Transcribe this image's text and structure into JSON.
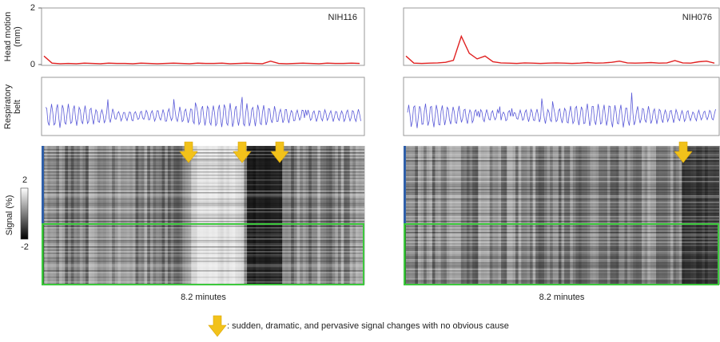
{
  "chart_data": [
    {
      "type": "line",
      "annotation": "NIH116",
      "ylabel": [
        "Head motion",
        "(mm)"
      ],
      "ylim": [
        0,
        2
      ],
      "yticks": [
        0,
        2
      ],
      "color": "#e02020",
      "values": [
        0.3,
        0.05,
        0.03,
        0.04,
        0.03,
        0.05,
        0.04,
        0.03,
        0.05,
        0.04,
        0.04,
        0.03,
        0.05,
        0.04,
        0.03,
        0.04,
        0.05,
        0.04,
        0.03,
        0.05,
        0.04,
        0.04,
        0.05,
        0.03,
        0.04,
        0.05,
        0.04,
        0.03,
        0.12,
        0.04,
        0.03,
        0.04,
        0.05,
        0.04,
        0.03,
        0.05,
        0.04,
        0.04,
        0.05,
        0.04
      ]
    },
    {
      "type": "line",
      "annotation": "NIH076",
      "ylim": [
        0,
        2
      ],
      "color": "#e02020",
      "values": [
        0.3,
        0.05,
        0.04,
        0.05,
        0.06,
        0.08,
        0.15,
        1.0,
        0.4,
        0.2,
        0.3,
        0.1,
        0.06,
        0.05,
        0.04,
        0.06,
        0.05,
        0.04,
        0.05,
        0.06,
        0.05,
        0.04,
        0.05,
        0.07,
        0.05,
        0.06,
        0.08,
        0.12,
        0.06,
        0.05,
        0.06,
        0.07,
        0.05,
        0.06,
        0.14,
        0.06,
        0.05,
        0.1,
        0.12,
        0.05
      ]
    },
    {
      "type": "waveform",
      "ylabel": [
        "Respiratory",
        "belt"
      ],
      "color": "#5a5ad8"
    },
    {
      "type": "waveform",
      "color": "#5a5ad8"
    },
    {
      "type": "carpet",
      "ylabel": "Signal (%)",
      "clim": [
        -2,
        2
      ],
      "cticks": [
        2,
        -2
      ],
      "xlabel": "8.2 minutes"
    },
    {
      "type": "carpet",
      "xlabel": "8.2 minutes"
    },
    {
      "type": "legend",
      "text": ": sudden, dramatic, and pervasive signal changes with no obvious cause"
    }
  ]
}
